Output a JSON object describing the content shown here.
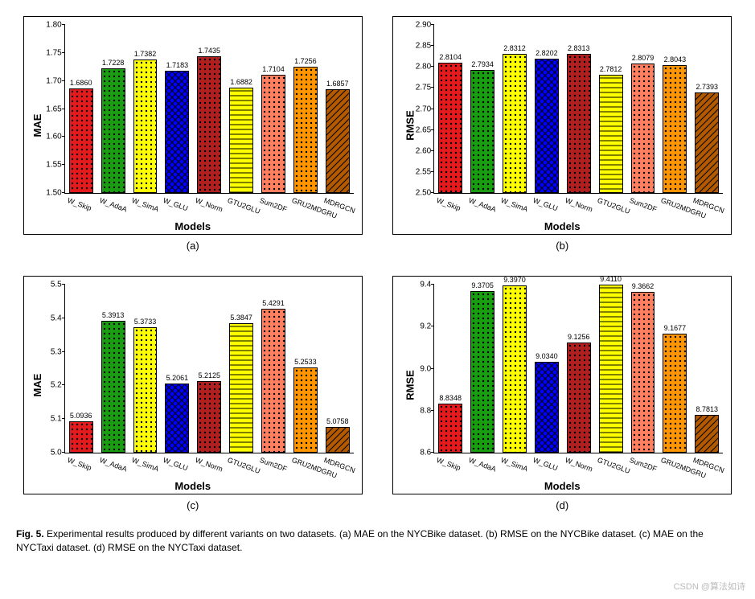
{
  "models": [
    "W_Skip",
    "W_AdaA",
    "W_SimA",
    "W_GLU",
    "W_Norm",
    "GTU2GLU",
    "Sum2DF",
    "GRU2MDGRU",
    "MDRGCN"
  ],
  "colors": [
    "#e41a1c",
    "#1a9e11",
    "#ffff00",
    "#0000ff",
    "#b02020",
    "#ffff00",
    "#ff8060",
    "#ff9500",
    "#b35a00"
  ],
  "patterns": [
    "dots",
    "dots",
    "dots",
    "cross",
    "dots",
    "hlines",
    "dots",
    "dots",
    "diag"
  ],
  "bar_border": "#000000",
  "label_fontsize": 9,
  "tick_fontsize": 10,
  "axis_fontsize": 13,
  "subcap_fontsize": 13,
  "caption_fontsize": 12,
  "charts": [
    {
      "id": "a",
      "ylabel": "MAE",
      "xlabel": "Models",
      "subcap": "(a)",
      "ymin": 1.5,
      "ymax": 1.8,
      "ystep": 0.05,
      "decimals": 2,
      "values": [
        1.686,
        1.7228,
        1.7382,
        1.7183,
        1.7435,
        1.6882,
        1.7104,
        1.7256,
        1.6857
      ]
    },
    {
      "id": "b",
      "ylabel": "RMSE",
      "xlabel": "Models",
      "subcap": "(b)",
      "ymin": 2.5,
      "ymax": 2.9,
      "ystep": 0.05,
      "decimals": 2,
      "values": [
        2.8104,
        2.7934,
        2.8312,
        2.8202,
        2.8313,
        2.7812,
        2.8079,
        2.8043,
        2.7393
      ]
    },
    {
      "id": "c",
      "ylabel": "MAE",
      "xlabel": "Models",
      "subcap": "(c)",
      "ymin": 5.0,
      "ymax": 5.5,
      "ystep": 0.1,
      "decimals": 1,
      "values": [
        5.0936,
        5.3913,
        5.3733,
        5.2061,
        5.2125,
        5.3847,
        5.4291,
        5.2533,
        5.0758
      ]
    },
    {
      "id": "d",
      "ylabel": "RMSE",
      "xlabel": "Models",
      "subcap": "(d)",
      "ymin": 8.6,
      "ymax": 9.4,
      "ystep": 0.2,
      "decimals": 1,
      "values": [
        8.8348,
        9.3705,
        9.397,
        9.034,
        9.1256,
        9.411,
        9.3662,
        9.1677,
        8.7813
      ]
    }
  ],
  "caption_bold": "Fig. 5.",
  "caption_text": " Experimental results produced by different variants on two datasets. (a) MAE on the NYCBike dataset. (b) RMSE on the NYCBike dataset. (c) MAE on the NYCTaxi dataset. (d) RMSE on the NYCTaxi dataset.",
  "watermark": "CSDN @算法如诗"
}
